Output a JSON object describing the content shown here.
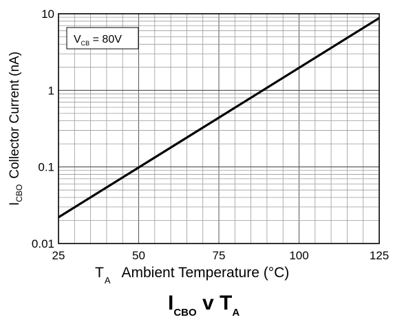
{
  "chart_data": {
    "type": "line",
    "title_main": "I",
    "title_sub": "CBO",
    "title_mid": " v T",
    "title_sub2": "A",
    "xlabel_symbol": "T",
    "xlabel_symbol_sub": "A",
    "xlabel_text": "Ambient Temperature (°C)",
    "ylabel_symbol": "I",
    "ylabel_symbol_sub": "CBO",
    "ylabel_text": "Collector Current (nA)",
    "xlim": [
      25,
      125
    ],
    "ylim": [
      0.01,
      10
    ],
    "y_scale": "log",
    "grid": true,
    "x_ticks": [
      {
        "value": 25,
        "label": "25"
      },
      {
        "value": 50,
        "label": "50"
      },
      {
        "value": 75,
        "label": "75"
      },
      {
        "value": 100,
        "label": "100"
      },
      {
        "value": 125,
        "label": "125"
      }
    ],
    "y_ticks": [
      {
        "value": 0.01,
        "label": "0.01"
      },
      {
        "value": 0.1,
        "label": "0.1"
      },
      {
        "value": 1,
        "label": "1"
      },
      {
        "value": 10,
        "label": "10"
      }
    ],
    "annotation": {
      "symbol": "V",
      "sub": "CB",
      "text": " = 80V"
    },
    "series": [
      {
        "color": "#000000",
        "x": [
          25,
          125
        ],
        "y": [
          0.022,
          8.8
        ]
      }
    ]
  }
}
